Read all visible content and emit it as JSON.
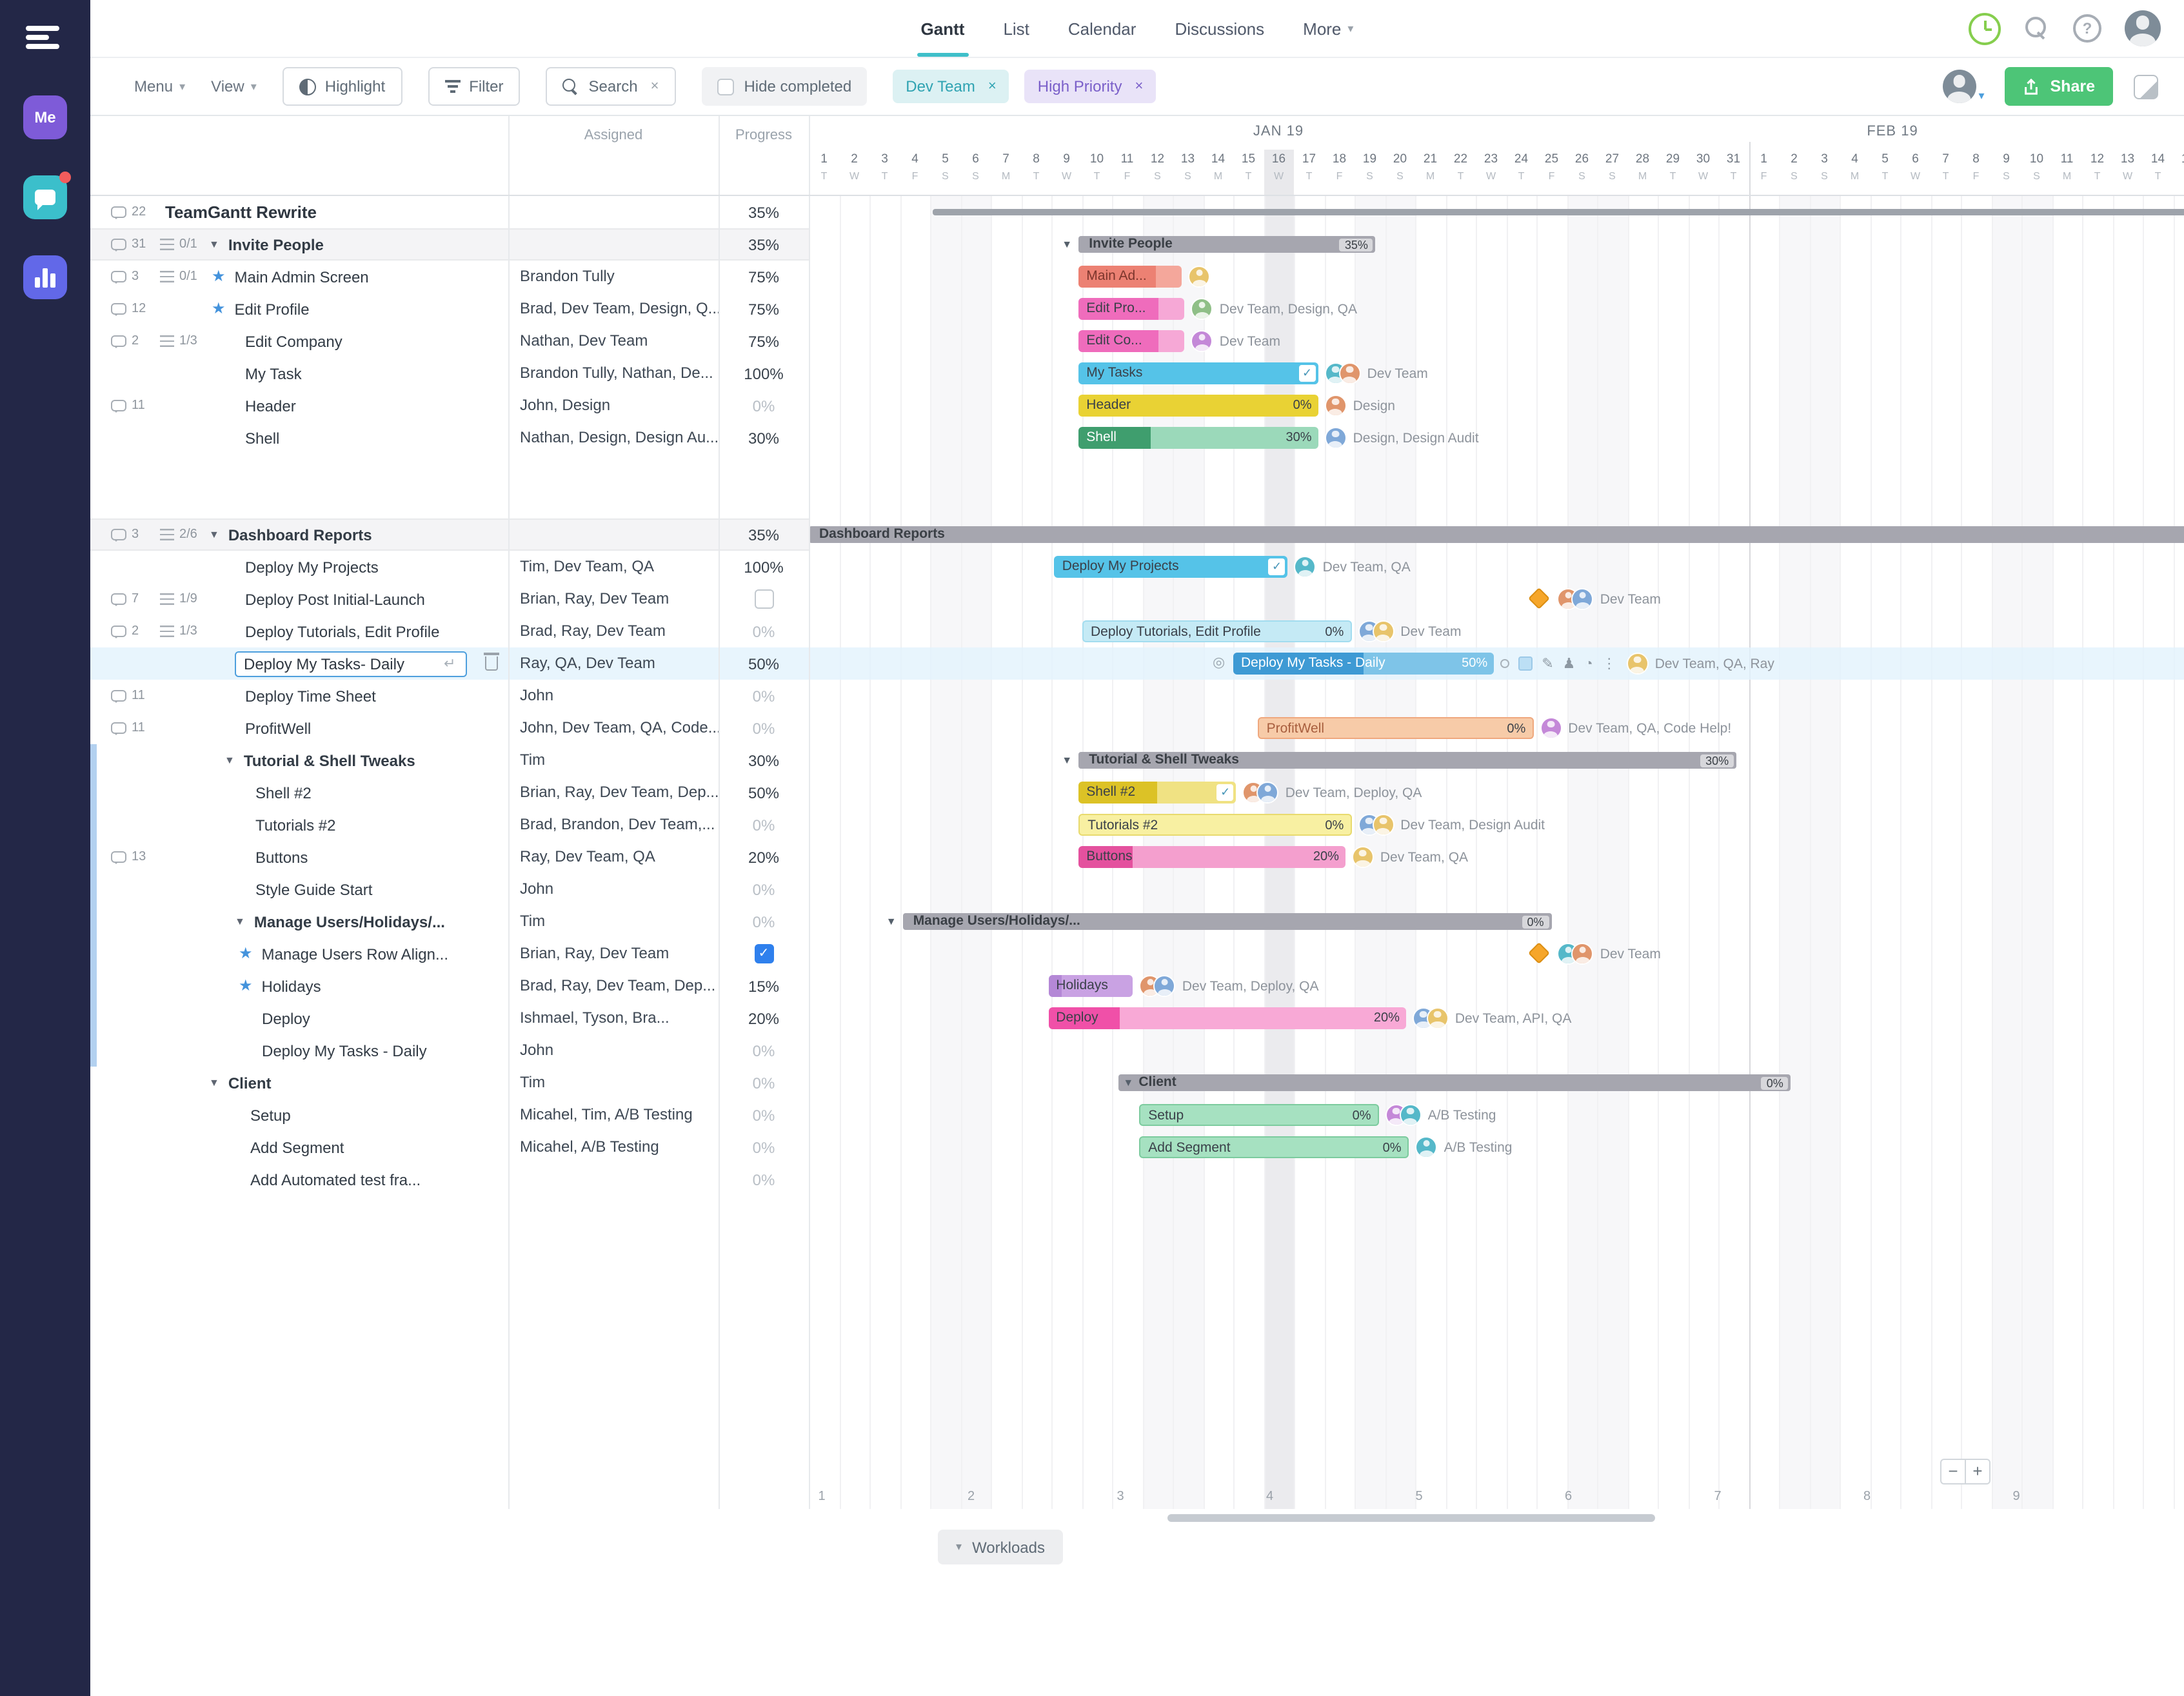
{
  "colors": {
    "accent_teal": "#3FBFC9",
    "share_green": "#4DC577",
    "sidebar_bg": "#232747",
    "selected_row": "#EAF5FD",
    "today_col": "#EBEBEE",
    "weekend_col": "#F7F7F9",
    "milestone_orange": "#F6A62A"
  },
  "icons": {
    "close": "×",
    "caret_down": "▾",
    "tri_down": "▼",
    "star": "★",
    "enter": "↵",
    "minus": "−",
    "plus": "+",
    "kebab": "⋮",
    "pencil": "✎",
    "person": "♟",
    "clock": "◔",
    "target": "◎",
    "check": "✓"
  },
  "sidebar": {
    "me_label": "Me"
  },
  "topnav": {
    "tabs": [
      {
        "label": "Gantt",
        "active": true
      },
      {
        "label": "List",
        "active": false
      },
      {
        "label": "Calendar",
        "active": false
      },
      {
        "label": "Discussions",
        "active": false
      },
      {
        "label": "More",
        "active": false,
        "caret": true
      }
    ]
  },
  "toolbar": {
    "menu": "Menu",
    "view": "View",
    "highlight": "Highlight",
    "filter": "Filter",
    "search": "Search",
    "hide_completed": "Hide completed",
    "chips": [
      {
        "label": "Dev Team",
        "bg": "#DCF1F3",
        "fg": "#2FA3B2"
      },
      {
        "label": "High Priority",
        "bg": "#E9E3F8",
        "fg": "#7A5FC9"
      }
    ],
    "share": "Share"
  },
  "table_header": {
    "assigned": "Assigned",
    "progress": "Progress"
  },
  "timeline": {
    "months": [
      {
        "label": "JAN 19",
        "days": 31
      },
      {
        "label": "FEB 19",
        "days": 15
      }
    ],
    "days": [
      {
        "n": "1",
        "l": "T"
      },
      {
        "n": "2",
        "l": "W"
      },
      {
        "n": "3",
        "l": "T"
      },
      {
        "n": "4",
        "l": "F"
      },
      {
        "n": "5",
        "l": "S",
        "we": true
      },
      {
        "n": "6",
        "l": "S",
        "we": true
      },
      {
        "n": "7",
        "l": "M"
      },
      {
        "n": "8",
        "l": "T"
      },
      {
        "n": "9",
        "l": "W"
      },
      {
        "n": "10",
        "l": "T"
      },
      {
        "n": "11",
        "l": "F"
      },
      {
        "n": "12",
        "l": "S",
        "we": true
      },
      {
        "n": "13",
        "l": "S",
        "we": true
      },
      {
        "n": "14",
        "l": "M"
      },
      {
        "n": "15",
        "l": "T"
      },
      {
        "n": "16",
        "l": "W",
        "today": true
      },
      {
        "n": "17",
        "l": "T"
      },
      {
        "n": "18",
        "l": "F"
      },
      {
        "n": "19",
        "l": "S",
        "we": true
      },
      {
        "n": "20",
        "l": "S",
        "we": true
      },
      {
        "n": "21",
        "l": "M"
      },
      {
        "n": "22",
        "l": "T"
      },
      {
        "n": "23",
        "l": "W"
      },
      {
        "n": "24",
        "l": "T"
      },
      {
        "n": "25",
        "l": "F"
      },
      {
        "n": "26",
        "l": "S",
        "we": true
      },
      {
        "n": "27",
        "l": "S",
        "we": true
      },
      {
        "n": "28",
        "l": "M"
      },
      {
        "n": "29",
        "l": "T"
      },
      {
        "n": "30",
        "l": "W"
      },
      {
        "n": "31",
        "l": "T"
      },
      {
        "n": "1",
        "l": "F"
      },
      {
        "n": "2",
        "l": "S",
        "we": true
      },
      {
        "n": "3",
        "l": "S",
        "we": true
      },
      {
        "n": "4",
        "l": "M"
      },
      {
        "n": "5",
        "l": "T"
      },
      {
        "n": "6",
        "l": "W"
      },
      {
        "n": "7",
        "l": "T"
      },
      {
        "n": "8",
        "l": "F"
      },
      {
        "n": "9",
        "l": "S",
        "we": true
      },
      {
        "n": "10",
        "l": "S",
        "we": true
      },
      {
        "n": "11",
        "l": "M"
      },
      {
        "n": "12",
        "l": "T"
      },
      {
        "n": "13",
        "l": "W"
      },
      {
        "n": "14",
        "l": "T"
      },
      {
        "n": "15",
        "l": "F"
      }
    ],
    "week_numbers": [
      "1",
      "2",
      "3",
      "4",
      "5",
      "6",
      "7",
      "8",
      "9"
    ]
  },
  "rows": [
    {
      "kind": "project",
      "name": "TeamGantt Rewrite",
      "comments": "22",
      "progress": "35%",
      "indent": 58,
      "bar": {
        "type": "projectline",
        "s": 5.1,
        "e": 46.5
      }
    },
    {
      "kind": "group",
      "band": true,
      "name": "Invite People",
      "comments": "31",
      "checklist": "0/1",
      "caret": true,
      "progress": "35%",
      "indent": 92,
      "bar": {
        "type": "group",
        "s": 9.9,
        "e": 19.7,
        "label": "Invite People",
        "pct": "35%",
        "caret": "out"
      }
    },
    {
      "kind": "task",
      "name": "Main Admin Screen",
      "comments": "3",
      "checklist": "0/1",
      "star": true,
      "assigned": "Brandon Tully",
      "progress": "75%",
      "indent": 94,
      "bar": {
        "type": "bar",
        "s": 9.9,
        "e": 13.3,
        "light": "#F4A79B",
        "dark": "#EC8173",
        "prog": 0.75,
        "label": "Main Ad...",
        "labelColor": "#7C352C",
        "avatars": 1,
        "names": ""
      }
    },
    {
      "kind": "task",
      "name": "Edit Profile",
      "comments": "12",
      "star": true,
      "assigned": "Brad, Dev Team, Design, Q...",
      "progress": "75%",
      "indent": 94,
      "bar": {
        "type": "bar",
        "s": 9.9,
        "e": 13.4,
        "light": "#F6A8D6",
        "dark": "#EF6CBC",
        "prog": 0.75,
        "label": "Edit Pro...",
        "avatars": 1,
        "names": "Dev Team, Design, QA"
      }
    },
    {
      "kind": "task",
      "name": "Edit Company",
      "comments": "2",
      "checklist": "1/3",
      "assigned": "Nathan, Dev Team",
      "progress": "75%",
      "indent": 120,
      "bar": {
        "type": "bar",
        "s": 9.9,
        "e": 13.4,
        "light": "#F6A8D6",
        "dark": "#EF6CBC",
        "prog": 0.75,
        "label": "Edit Co...",
        "avatars": 1,
        "names": "Dev Team"
      }
    },
    {
      "kind": "task",
      "name": "My Task",
      "assigned": "Brandon Tully, Nathan, De...",
      "progress": "100%",
      "indent": 120,
      "bar": {
        "type": "bar",
        "s": 9.9,
        "e": 17.8,
        "light": "#55C3E8",
        "dark": "#55C3E8",
        "prog": 1,
        "label": "My Tasks",
        "check": true,
        "avatars": 2,
        "names": "Dev Team"
      }
    },
    {
      "kind": "task",
      "name": "Header",
      "comments": "11",
      "assigned": "John, Design",
      "progress": "0%",
      "muted": true,
      "indent": 120,
      "bar": {
        "type": "bar",
        "s": 9.9,
        "e": 17.8,
        "light": "#E9D234",
        "dark": "#E9D234",
        "prog": 0,
        "label": "Header",
        "pct": "0%",
        "avatars": 1,
        "names": "Design"
      }
    },
    {
      "kind": "task",
      "name": "Shell",
      "assigned": "Nathan, Design, Design Au...",
      "progress": "30%",
      "indent": 120,
      "bar": {
        "type": "bar",
        "s": 9.9,
        "e": 17.8,
        "light": "#9BD9BA",
        "dark": "#3F9E6E",
        "prog": 0.3,
        "label": "Shell",
        "labelWhite": true,
        "pct": "30%",
        "avatars": 1,
        "names": "Design, Design Audit"
      }
    },
    {
      "kind": "spacer"
    },
    {
      "kind": "spacer"
    },
    {
      "kind": "group",
      "band": true,
      "name": "Dashboard Reports",
      "comments": "3",
      "checklist": "2/6",
      "caret": true,
      "progress": "35%",
      "indent": 92,
      "bar": {
        "type": "group",
        "s": 1,
        "e": 46.5,
        "label": "Dashboard Reports"
      }
    },
    {
      "kind": "task",
      "name": "Deploy My Projects",
      "assigned": "Tim, Dev Team, QA",
      "progress": "100%",
      "indent": 120,
      "bar": {
        "type": "bar",
        "s": 9.1,
        "e": 16.8,
        "light": "#55C3E8",
        "dark": "#55C3E8",
        "prog": 1,
        "label": "Deploy My Projects",
        "check": true,
        "avatars": 1,
        "names": "Dev Team, QA"
      }
    },
    {
      "kind": "task",
      "name": "Deploy Post Initial-Launch",
      "comments": "7",
      "checklist": "1/9",
      "assigned": "Brian, Ray, Dev Team",
      "pcheck": "empty",
      "indent": 120,
      "bar": {
        "type": "milestone",
        "ms": 25.1,
        "avatars": 2,
        "names": "Dev Team"
      }
    },
    {
      "kind": "task",
      "name": "Deploy Tutorials, Edit Profile",
      "comments": "2",
      "checklist": "1/3",
      "assigned": "Brad, Ray, Dev Team",
      "progress": "0%",
      "muted": true,
      "indent": 120,
      "bar": {
        "type": "bar",
        "s": 10,
        "e": 18.9,
        "light": "#C5EAF5",
        "dark": "#C5EAF5",
        "prog": 0,
        "border": "#A2DCEF",
        "label": "Deploy Tutorials, Edit Profile",
        "pct": "0%",
        "avatars": 2,
        "names": "Dev Team"
      }
    },
    {
      "kind": "task",
      "selected": true,
      "name": "Deploy My Tasks- Daily",
      "assigned": "Ray, QA, Dev Team",
      "progress": "50%",
      "indent": 112,
      "bar": {
        "type": "bar",
        "s": 15,
        "e": 23.6,
        "light": "#7EC4E8",
        "dark": "#3E9AD4",
        "prog": 0.5,
        "label": "Deploy My Tasks - Daily",
        "labelWhite": true,
        "pct": "50%",
        "pctWhite": true,
        "selected": true,
        "avatars": 1,
        "names": "Dev Team, QA, Ray"
      }
    },
    {
      "kind": "task",
      "name": "Deploy Time Sheet",
      "comments": "11",
      "assigned": "John",
      "progress": "0%",
      "muted": true,
      "indent": 120
    },
    {
      "kind": "task",
      "name": "ProfitWell",
      "comments": "11",
      "assigned": "John, Dev Team, QA, Code...",
      "progress": "0%",
      "muted": true,
      "indent": 120,
      "bar": {
        "type": "bar",
        "s": 15.8,
        "e": 24.9,
        "light": "#F7CBA8",
        "dark": "#F7CBA8",
        "prog": 0,
        "border": "#EFA87E",
        "label": "ProfitWell",
        "labelColor": "#A85E3E",
        "pct": "0%",
        "avatars": 1,
        "names": "Dev Team, QA, Code Help!"
      }
    },
    {
      "kind": "subgroup",
      "name": "Tutorial & Shell Tweaks",
      "caret": true,
      "strip": true,
      "assigned": "Tim",
      "progress": "30%",
      "indent": 104,
      "bar": {
        "type": "group",
        "s": 9.9,
        "e": 31.6,
        "label": "Tutorial & Shell Tweaks",
        "pct": "30%",
        "caret": "out"
      }
    },
    {
      "kind": "task",
      "name": "Shell #2",
      "strip": true,
      "assigned": "Brian, Ray, Dev Team, Dep...",
      "progress": "50%",
      "indent": 128,
      "bar": {
        "type": "bar",
        "s": 9.9,
        "e": 15.1,
        "light": "#F0E283",
        "dark": "#DCC226",
        "prog": 0.5,
        "label": "Shell #2",
        "check": true,
        "avatars": 2,
        "names": "Dev Team, Deploy, QA"
      }
    },
    {
      "kind": "task",
      "name": "Tutorials #2",
      "strip": true,
      "assigned": "Brad, Brandon, Dev Team,...",
      "progress": "0%",
      "muted": true,
      "indent": 128,
      "bar": {
        "type": "bar",
        "s": 9.9,
        "e": 18.9,
        "light": "#F8F0A2",
        "dark": "#F8F0A2",
        "prog": 0,
        "border": "#E8DA6E",
        "label": "Tutorials #2",
        "pct": "0%",
        "avatars": 2,
        "names": "Dev Team, Design Audit"
      }
    },
    {
      "kind": "task",
      "name": "Buttons",
      "comments": "13",
      "strip": true,
      "assigned": "Ray, Dev Team, QA",
      "progress": "20%",
      "indent": 128,
      "bar": {
        "type": "bar",
        "s": 9.9,
        "e": 18.7,
        "light": "#F49FCE",
        "dark": "#E4519E",
        "prog": 0.2,
        "label": "Buttons",
        "pct": "20%",
        "avatars": 1,
        "names": "Dev Team, QA"
      }
    },
    {
      "kind": "task",
      "name": "Style Guide Start",
      "strip": true,
      "assigned": "John",
      "progress": "0%",
      "muted": true,
      "indent": 128
    },
    {
      "kind": "subgroup",
      "name": "Manage Users/Holidays/...",
      "caret": true,
      "strip": true,
      "assigned": "Tim",
      "progress": "0%",
      "muted": true,
      "indent": 112,
      "bar": {
        "type": "group",
        "s": 4.1,
        "e": 25.5,
        "label": "Manage Users/Holidays/...",
        "pct": "0%",
        "caret": "out"
      }
    },
    {
      "kind": "task",
      "name": "Manage Users Row Align...",
      "star": true,
      "strip": true,
      "assigned": "Brian, Ray, Dev Team",
      "pcheck": "checked",
      "indent": 115,
      "bar": {
        "type": "milestone",
        "ms": 25.1,
        "avatars": 2,
        "names": "Dev Team"
      }
    },
    {
      "kind": "task",
      "name": "Holidays",
      "star": true,
      "strip": true,
      "assigned": "Brad, Ray, Dev Team, Dep...",
      "progress": "15%",
      "indent": 115,
      "bar": {
        "type": "bar",
        "s": 8.9,
        "e": 11.7,
        "light": "#C9A2E3",
        "dark": "#B488D6",
        "prog": 0.15,
        "label": "Holidays",
        "avatars": 2,
        "names": "Dev Team, Deploy, QA"
      }
    },
    {
      "kind": "task",
      "name": "Deploy",
      "strip": true,
      "assigned": "Ishmael, Tyson, Bra...",
      "progress": "20%",
      "indent": 133,
      "bar": {
        "type": "bar",
        "s": 8.9,
        "e": 20.7,
        "light": "#F8A9D6",
        "dark": "#F050A8",
        "prog": 0.2,
        "label": "Deploy",
        "pct": "20%",
        "avatars": 2,
        "names": "Dev Team, API, QA"
      }
    },
    {
      "kind": "task",
      "name": "Deploy My Tasks - Daily",
      "strip": true,
      "assigned": "John",
      "progress": "0%",
      "muted": true,
      "indent": 133
    },
    {
      "kind": "group",
      "name": "Client",
      "caret": true,
      "assigned": "Tim",
      "progress": "0%",
      "muted": true,
      "indent": 92,
      "bar": {
        "type": "group",
        "s": 11.2,
        "e": 33.4,
        "label": "Client",
        "pct": "0%",
        "caret": "in"
      }
    },
    {
      "kind": "task",
      "name": "Setup",
      "assigned": "Micahel, Tim, A/B Testing",
      "progress": "0%",
      "muted": true,
      "indent": 124,
      "bar": {
        "type": "bar",
        "s": 11.9,
        "e": 19.8,
        "light": "#A6E1C1",
        "dark": "#A6E1C1",
        "prog": 0,
        "border": "#7CCB9E",
        "label": "Setup",
        "pct": "0%",
        "avatars": 2,
        "names": "A/B Testing"
      }
    },
    {
      "kind": "task",
      "name": "Add Segment",
      "assigned": "Micahel, A/B Testing",
      "progress": "0%",
      "muted": true,
      "indent": 124,
      "bar": {
        "type": "bar",
        "s": 11.9,
        "e": 20.8,
        "light": "#A6E1C1",
        "dark": "#A6E1C1",
        "prog": 0,
        "border": "#7CCB9E",
        "label": "Add Segment",
        "pct": "0%",
        "avatars": 1,
        "names": "A/B Testing"
      }
    },
    {
      "kind": "task",
      "name": "Add Automated test fra...",
      "assigned": "",
      "progress": "0%",
      "muted": true,
      "indent": 124
    }
  ],
  "footer": {
    "workloads": "Workloads",
    "zoom_out": "−",
    "zoom_in": "+"
  }
}
